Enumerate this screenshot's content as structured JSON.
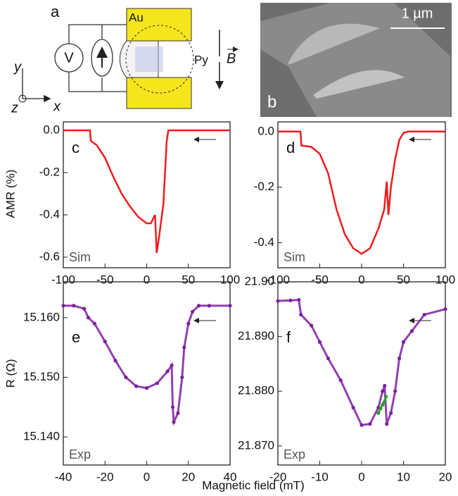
{
  "panel_a": {
    "label": "a",
    "contact": "Au",
    "meter": "V",
    "sample": "Py",
    "field": "B",
    "axis_y": "y",
    "axis_z": "z",
    "axis_x": "x"
  },
  "panel_b": {
    "label": "b",
    "scale": "1 µm"
  },
  "labels": {
    "amr": "AMR (%)",
    "resistance": "R (Ω)",
    "field": "Magnetic field (mT)"
  },
  "chart_data": [
    {
      "type": "line",
      "panel_label": "c",
      "annotation": "Sim",
      "xlim": [
        -100,
        100
      ],
      "xticks": [
        -100,
        -50,
        0,
        50,
        100
      ],
      "ylim": [
        -0.65,
        0.04
      ],
      "yticks": [
        {
          "value": 0,
          "label": "0.0"
        },
        -0.2,
        -0.4,
        -0.6
      ],
      "series": [
        {
          "color": "#ee1c1c",
          "x": [
            -100,
            -68,
            -67,
            -60,
            -50,
            -40,
            -30,
            -20,
            -10,
            0,
            5,
            10,
            12,
            15,
            20,
            22,
            24,
            26,
            100
          ],
          "values": [
            0,
            0,
            -0.05,
            -0.07,
            -0.13,
            -0.22,
            -0.3,
            -0.36,
            -0.41,
            -0.44,
            -0.44,
            -0.4,
            -0.58,
            -0.5,
            -0.35,
            -0.2,
            -0.05,
            0,
            0
          ]
        }
      ]
    },
    {
      "type": "line",
      "panel_label": "d",
      "annotation": "Sim",
      "xlim": [
        -100,
        100
      ],
      "xticks": [
        -100,
        -50,
        0,
        50,
        100
      ],
      "ylim": [
        -0.49,
        0.035
      ],
      "yticks": [
        {
          "value": 0,
          "label": "0.0"
        },
        -0.2,
        -0.4
      ],
      "series": [
        {
          "color": "#ee1c1c",
          "x": [
            -100,
            -73,
            -72,
            -60,
            -50,
            -40,
            -30,
            -20,
            -10,
            0,
            10,
            20,
            27,
            30,
            32,
            35,
            40,
            45,
            50,
            55,
            100
          ],
          "values": [
            0,
            0,
            -0.05,
            -0.055,
            -0.08,
            -0.15,
            -0.28,
            -0.37,
            -0.42,
            -0.44,
            -0.42,
            -0.35,
            -0.28,
            -0.18,
            -0.3,
            -0.2,
            -0.1,
            -0.03,
            -0.005,
            0,
            0
          ]
        }
      ]
    },
    {
      "type": "scatter",
      "panel_label": "e",
      "annotation": "Exp",
      "xlim": [
        -40,
        40
      ],
      "xticks": [
        -40,
        -20,
        0,
        20,
        40
      ],
      "ylim": [
        15.1353,
        15.166
      ],
      "yticks": [
        {
          "value": 15.16,
          "label": "15.160"
        },
        {
          "value": 15.15,
          "label": "15.150"
        },
        {
          "value": 15.14,
          "label": "15.140"
        }
      ],
      "series": [
        {
          "color": "#7e1fa0",
          "x": [
            -40,
            -35,
            -30,
            -28,
            -25,
            -20,
            -15,
            -10,
            -5,
            0,
            5,
            10,
            12,
            12.5,
            13,
            15,
            17,
            18,
            20,
            22,
            25,
            30,
            40
          ],
          "values": [
            15.162,
            15.162,
            15.1615,
            15.16,
            15.159,
            15.156,
            15.1528,
            15.15,
            15.1485,
            15.1482,
            15.149,
            15.151,
            15.152,
            15.145,
            15.1425,
            15.144,
            15.15,
            15.155,
            15.159,
            15.161,
            15.162,
            15.162,
            15.162
          ]
        }
      ]
    },
    {
      "type": "scatter",
      "panel_label": "f",
      "annotation": "Exp",
      "xlim": [
        -20,
        20
      ],
      "xticks": [
        -20,
        -10,
        0,
        10,
        20
      ],
      "ylim": [
        21.8665,
        21.9
      ],
      "yticks": [
        {
          "value": 21.9,
          "label": "21.90"
        },
        {
          "value": 21.89,
          "label": "21.890"
        },
        {
          "value": 21.88,
          "label": "21.880"
        },
        {
          "value": 21.87,
          "label": "21.870"
        }
      ],
      "series": [
        {
          "color": "#7e1fa0",
          "x": [
            -20,
            -17,
            -15,
            -14.5,
            -12,
            -10,
            -8,
            -5,
            -2,
            0,
            2,
            4,
            5,
            5.5,
            6,
            7,
            8,
            9,
            10,
            12,
            15,
            20
          ],
          "values": [
            21.8965,
            21.8966,
            21.8967,
            21.894,
            21.892,
            21.889,
            21.886,
            21.882,
            21.877,
            21.8738,
            21.874,
            21.877,
            21.88,
            21.881,
            21.874,
            21.876,
            21.88,
            21.886,
            21.889,
            21.891,
            21.894,
            21.895
          ]
        },
        {
          "color": "#2e9a2e",
          "x": [
            4,
            4.5,
            5,
            5.4,
            5.8
          ],
          "values": [
            21.876,
            21.8768,
            21.8775,
            21.878,
            21.879
          ]
        }
      ]
    }
  ]
}
